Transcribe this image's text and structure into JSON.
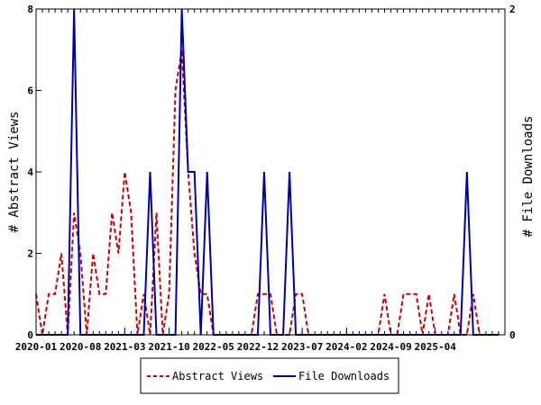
{
  "chart_data": {
    "type": "line",
    "x_tick_labels": [
      "2020-01",
      "2020-08",
      "2021-03",
      "2021-10",
      "2022-05",
      "2022-12",
      "2023-07",
      "2024-02",
      "2024-09",
      "2025-04"
    ],
    "y_left": {
      "label": "# Abstract Views",
      "ticks": [
        "0",
        "2",
        "4",
        "6",
        "8"
      ],
      "range": [
        0,
        8
      ]
    },
    "y_right": {
      "label": "# File Downloads",
      "ticks": [
        "0",
        "2"
      ],
      "range": [
        0,
        2
      ]
    },
    "x_months": 74,
    "legend_position": "bottom-center",
    "series": [
      {
        "name": "Abstract Views",
        "axis": "left",
        "style": "dashed",
        "color": "#cc0000",
        "values": [
          1,
          0,
          1,
          1,
          2,
          0,
          3,
          2,
          0,
          2,
          1,
          1,
          3,
          2,
          4,
          3,
          0,
          1,
          0,
          3,
          0,
          1,
          6,
          7,
          4,
          2,
          1,
          1,
          0,
          0,
          0,
          0,
          0,
          0,
          0,
          1,
          1,
          1,
          0,
          0,
          0,
          1,
          1,
          0,
          0,
          0,
          0,
          0,
          0,
          0,
          0,
          0,
          0,
          0,
          0,
          1,
          0,
          0,
          1,
          1,
          1,
          0,
          1,
          0,
          0,
          0,
          1,
          0,
          0,
          1,
          0,
          0,
          0,
          0
        ]
      },
      {
        "name": "File Downloads",
        "axis": "right",
        "style": "solid",
        "color": "#0000aa",
        "values": [
          0,
          0,
          0,
          0,
          0,
          0,
          2,
          0,
          0,
          0,
          0,
          0,
          0,
          0,
          0,
          0,
          0,
          0,
          1,
          0,
          0,
          0,
          0,
          2,
          1,
          1,
          0,
          1,
          0,
          0,
          0,
          0,
          0,
          0,
          0,
          0,
          1,
          0,
          0,
          0,
          1,
          0,
          0,
          0,
          0,
          0,
          0,
          0,
          0,
          0,
          0,
          0,
          0,
          0,
          0,
          0,
          0,
          0,
          0,
          0,
          0,
          0,
          0,
          0,
          0,
          0,
          0,
          0,
          1,
          0,
          0,
          0,
          0,
          0
        ]
      }
    ]
  }
}
